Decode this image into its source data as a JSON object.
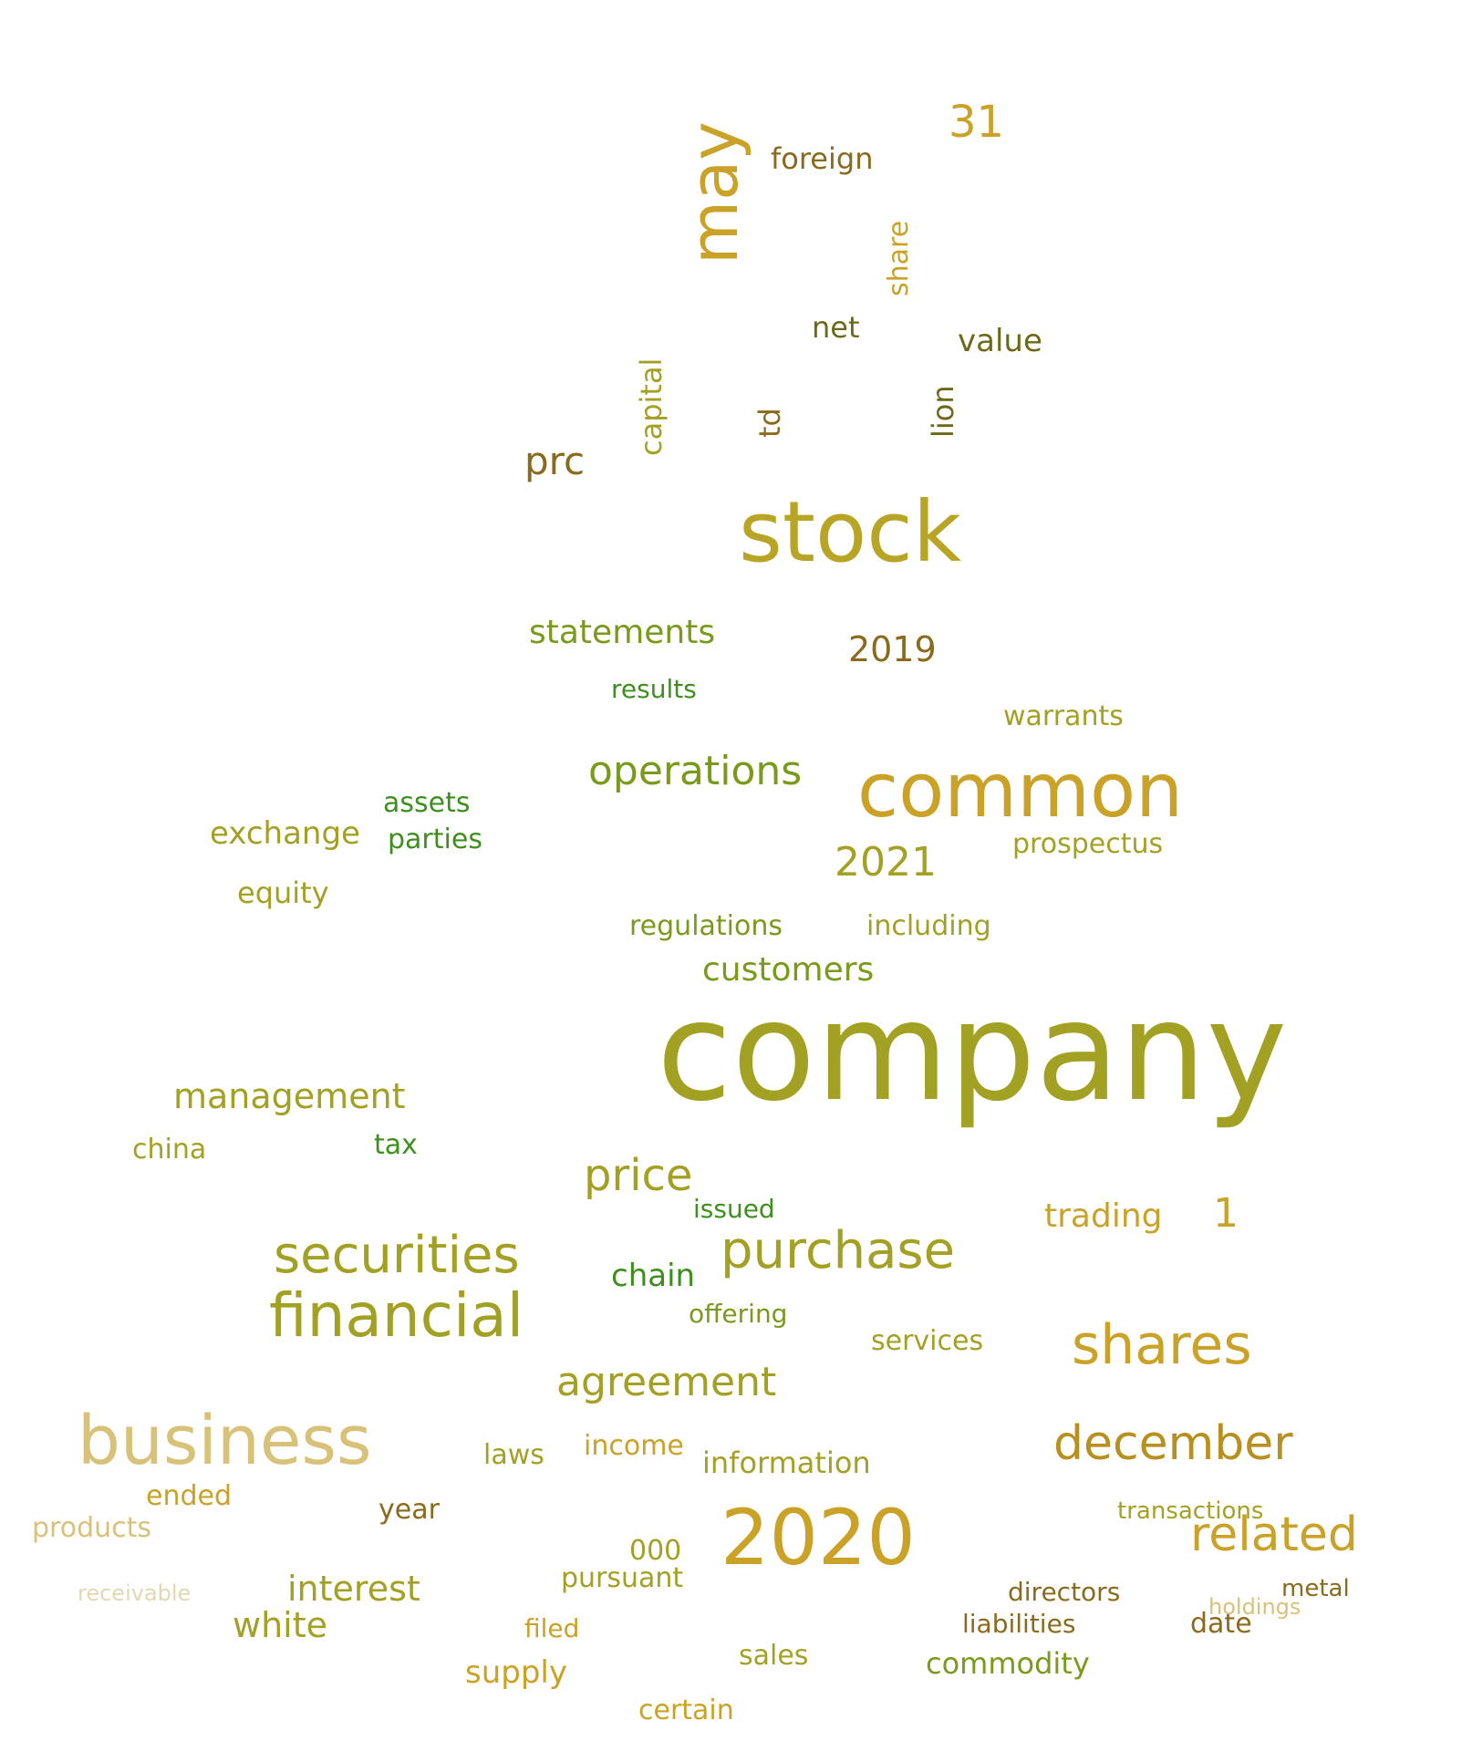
{
  "palette": {
    "olive_dark": "#6b6a1a",
    "olive": "#a3a124",
    "gold": "#c9a227",
    "green": "#3f8f1f",
    "tan": "#d8c27a",
    "brown": "#8a6a1c",
    "pale": "#e2d9b2"
  },
  "words": [
    {
      "text": "company",
      "color": "#a3a124"
    },
    {
      "text": "stock",
      "color": "#b8a526"
    },
    {
      "text": "common",
      "color": "#c9a227"
    },
    {
      "text": "2020",
      "color": "#c9a227"
    },
    {
      "text": "business",
      "color": "#d8c27a"
    },
    {
      "text": "financial",
      "color": "#a3a124"
    },
    {
      "text": "securities",
      "color": "#a3a124"
    },
    {
      "text": "shares",
      "color": "#c9a227"
    },
    {
      "text": "purchase",
      "color": "#a3a124"
    },
    {
      "text": "december",
      "color": "#b8901f"
    },
    {
      "text": "related",
      "color": "#c9a227"
    },
    {
      "text": "may",
      "color": "#c9a227"
    },
    {
      "text": "agreement",
      "color": "#a3a124"
    },
    {
      "text": "price",
      "color": "#a3a124"
    },
    {
      "text": "operations",
      "color": "#7a9a1c"
    },
    {
      "text": "31",
      "color": "#c9a227"
    },
    {
      "text": "2021",
      "color": "#a3a124"
    },
    {
      "text": "1",
      "color": "#c9a227"
    },
    {
      "text": "2019",
      "color": "#8a6a1c"
    },
    {
      "text": "management",
      "color": "#a3a124"
    },
    {
      "text": "statements",
      "color": "#7a9a1c"
    },
    {
      "text": "prc",
      "color": "#8a6a1c"
    },
    {
      "text": "interest",
      "color": "#a3a124"
    },
    {
      "text": "white",
      "color": "#a3a124"
    },
    {
      "text": "exchange",
      "color": "#a3a124"
    },
    {
      "text": "customers",
      "color": "#7a9a1c"
    },
    {
      "text": "trading",
      "color": "#c9a227"
    },
    {
      "text": "chain",
      "color": "#3f8f1f"
    },
    {
      "text": "commodity",
      "color": "#7a9a1c"
    },
    {
      "text": "supply",
      "color": "#c9a227"
    },
    {
      "text": "information",
      "color": "#a3a124"
    },
    {
      "text": "value",
      "color": "#6b6a1a"
    },
    {
      "text": "foreign",
      "color": "#8a6a1c"
    },
    {
      "text": "net",
      "color": "#6b6a1a"
    },
    {
      "text": "capital",
      "color": "#a3a124"
    },
    {
      "text": "lion",
      "color": "#6b6a1a"
    },
    {
      "text": "td",
      "color": "#8a6a1c"
    },
    {
      "text": "share",
      "color": "#c9a227"
    },
    {
      "text": "regulations",
      "color": "#7a9a1c"
    },
    {
      "text": "equity",
      "color": "#a3a124"
    },
    {
      "text": "assets",
      "color": "#3f8f1f"
    },
    {
      "text": "parties",
      "color": "#3f8f1f"
    },
    {
      "text": "including",
      "color": "#a3a124"
    },
    {
      "text": "results",
      "color": "#3f8f1f"
    },
    {
      "text": "warrants",
      "color": "#a3a124"
    },
    {
      "text": "prospectus",
      "color": "#a3a124"
    },
    {
      "text": "china",
      "color": "#a3a124"
    },
    {
      "text": "tax",
      "color": "#3f8f1f"
    },
    {
      "text": "issued",
      "color": "#3f8f1f"
    },
    {
      "text": "offering",
      "color": "#7a9a1c"
    },
    {
      "text": "services",
      "color": "#a3a124"
    },
    {
      "text": "directors",
      "color": "#8a6a1c"
    },
    {
      "text": "liabilities",
      "color": "#8a6a1c"
    },
    {
      "text": "income",
      "color": "#c9a227"
    },
    {
      "text": "pursuant",
      "color": "#a3a124"
    },
    {
      "text": "sales",
      "color": "#a3a124"
    },
    {
      "text": "certain",
      "color": "#c9a227"
    },
    {
      "text": "laws",
      "color": "#a3a124"
    },
    {
      "text": "filed",
      "color": "#c9a227"
    },
    {
      "text": "products",
      "color": "#d8c27a"
    },
    {
      "text": "ended",
      "color": "#c9a227"
    },
    {
      "text": "year",
      "color": "#8a6a1c"
    },
    {
      "text": "000",
      "color": "#a3a124"
    },
    {
      "text": "date",
      "color": "#8a6a1c"
    },
    {
      "text": "transactions",
      "color": "#a3a124"
    },
    {
      "text": "metal",
      "color": "#8a6a1c"
    },
    {
      "text": "receivable",
      "color": "#e2d9b2"
    },
    {
      "text": "holdings",
      "color": "#d8c27a"
    }
  ]
}
